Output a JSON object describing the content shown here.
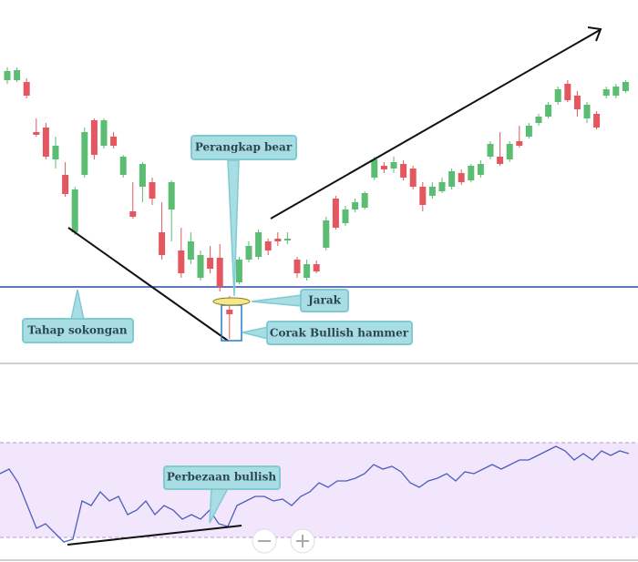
{
  "chart_data": [
    {
      "type": "candlestick",
      "open": [
        312,
        312,
        310,
        255,
        260,
        225,
        208,
        145,
        208,
        268,
        240,
        250,
        208,
        168,
        195,
        200,
        145,
        170,
        125,
        115,
        95,
        117,
        117,
        60,
        90,
        115,
        118,
        135,
        138,
        136,
        115,
        95,
        110,
        128,
        182,
        155,
        170,
        172,
        205,
        218,
        215,
        220,
        215,
        195,
        185,
        190,
        195,
        210,
        202,
        208,
        228,
        228,
        225,
        245,
        250,
        265,
        272,
        288,
        308,
        295,
        270,
        275,
        295,
        295,
        300
      ],
      "close": [
        322,
        323,
        295,
        252,
        228,
        240,
        187,
        192,
        255,
        230,
        268,
        240,
        228,
        162,
        220,
        182,
        120,
        200,
        100,
        135,
        120,
        105,
        85,
        55,
        115,
        130,
        145,
        125,
        135,
        138,
        100,
        110,
        102,
        158,
        150,
        170,
        178,
        188,
        225,
        214,
        222,
        205,
        195,
        175,
        195,
        200,
        212,
        200,
        218,
        220,
        242,
        220,
        242,
        240,
        262,
        272,
        285,
        302,
        290,
        280,
        285,
        260,
        302,
        305,
        310
      ],
      "high": [
        326,
        326,
        314,
        270,
        265,
        250,
        222,
        195,
        260,
        270,
        270,
        255,
        230,
        200,
        222,
        205,
        178,
        202,
        150,
        145,
        125,
        130,
        132,
        75,
        118,
        135,
        148,
        138,
        145,
        145,
        118,
        115,
        114,
        162,
        185,
        174,
        182,
        190,
        228,
        222,
        228,
        224,
        218,
        200,
        200,
        205,
        215,
        214,
        220,
        224,
        245,
        255,
        245,
        262,
        265,
        275,
        288,
        305,
        312,
        300,
        288,
        278,
        305,
        308,
        312
      ],
      "low": [
        308,
        310,
        292,
        250,
        225,
        215,
        184,
        142,
        205,
        225,
        237,
        237,
        205,
        160,
        178,
        175,
        115,
        135,
        95,
        110,
        92,
        100,
        80,
        28,
        88,
        112,
        115,
        120,
        130,
        132,
        95,
        92,
        100,
        125,
        148,
        152,
        167,
        170,
        202,
        210,
        210,
        202,
        192,
        168,
        182,
        188,
        192,
        197,
        200,
        205,
        225,
        218,
        222,
        238,
        248,
        262,
        270,
        285,
        288,
        272,
        265,
        258,
        292,
        292,
        298
      ],
      "up_color": "#5bbd72",
      "down_color": "#e4575f",
      "ylim": [
        0,
        400
      ],
      "support": 85,
      "support_color": "#2a4aa6"
    },
    {
      "type": "line",
      "values": [
        100,
        105,
        90,
        65,
        40,
        45,
        35,
        25,
        28,
        70,
        65,
        80,
        70,
        75,
        55,
        60,
        70,
        55,
        65,
        60,
        50,
        55,
        50,
        60,
        45,
        42,
        65,
        70,
        75,
        75,
        70,
        72,
        65,
        75,
        80,
        90,
        85,
        92,
        92,
        95,
        100,
        110,
        105,
        108,
        102,
        90,
        85,
        92,
        95,
        100,
        92,
        102,
        100,
        105,
        110,
        105,
        110,
        115,
        115,
        120,
        125,
        130,
        125,
        115,
        122,
        115,
        125,
        120,
        125,
        122
      ],
      "color": "#4d5cbf",
      "ylim": [
        0,
        140
      ],
      "band": [
        30,
        134
      ],
      "band_color": "#f1e6fb"
    }
  ],
  "annotations": {
    "bear_trap": "Perangkap bear",
    "gap": "Jarak",
    "hammer": "Corak Bullish hammer",
    "support": "Tahap sokongan",
    "divergence": "Perbezaan bullish"
  }
}
